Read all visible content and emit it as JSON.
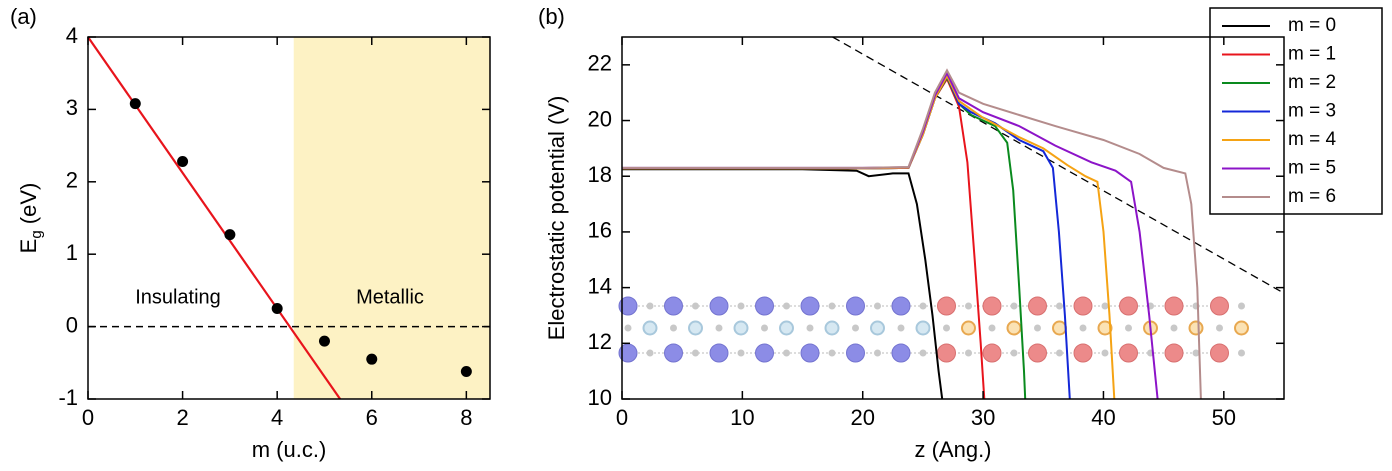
{
  "chart_data": [
    {
      "type": "scatter",
      "panel_label": "(a)",
      "xlabel": "m (u.c.)",
      "ylabel": [
        "E",
        "g",
        " (eV)"
      ],
      "xlim": [
        0,
        8.5
      ],
      "ylim": [
        -1,
        4
      ],
      "xticks": [
        0,
        2,
        4,
        6,
        8
      ],
      "yticks": [
        -1,
        0,
        1,
        2,
        3,
        4
      ],
      "x": [
        1,
        2,
        3,
        4,
        5,
        6,
        8
      ],
      "values": [
        3.08,
        2.28,
        1.27,
        0.25,
        -0.2,
        -0.45,
        -0.62
      ],
      "color": "#000000",
      "fit": {
        "x": [
          0,
          5.33
        ],
        "values": [
          4,
          -1
        ],
        "color": "#e8141c"
      },
      "hline": 0,
      "shade_xlim": [
        4.35,
        8.5
      ],
      "shade_color": "#fdf2c4",
      "annotations": [
        "Insulating",
        "Metallic"
      ]
    },
    {
      "type": "line",
      "panel_label": "(b)",
      "xlabel": "z (Ang.)",
      "ylabel": "Electrostatic potential (V)",
      "xlim": [
        0,
        55
      ],
      "ylim": [
        10,
        23
      ],
      "xticks": [
        0,
        10,
        20,
        30,
        40,
        50
      ],
      "yticks": [
        10,
        12,
        14,
        16,
        18,
        20,
        22
      ],
      "legend": "upper right",
      "guide": {
        "x": [
          17.5,
          55
        ],
        "values": [
          23,
          13.8
        ]
      },
      "series": [
        {
          "name": "m = 0",
          "color": "#000000",
          "x": [
            0,
            5,
            10,
            15,
            19.5,
            20.5,
            22.5,
            23.8,
            24.5,
            25.2,
            25.8,
            26.3,
            26.6
          ],
          "values": [
            18.25,
            18.25,
            18.25,
            18.25,
            18.2,
            18.0,
            18.1,
            18.1,
            17,
            15,
            13,
            11,
            10
          ]
        },
        {
          "name": "m = 1",
          "color": "#e8141c",
          "x": [
            0,
            10,
            20,
            23.8,
            25,
            26,
            27,
            28,
            28.7,
            29.3,
            29.8,
            30.1
          ],
          "values": [
            18.28,
            18.28,
            18.28,
            18.3,
            19.5,
            20.8,
            21.5,
            20.5,
            18.5,
            15,
            12,
            10
          ]
        },
        {
          "name": "m = 2",
          "color": "#0a8a1e",
          "x": [
            0,
            10,
            20,
            23.8,
            25,
            26,
            27,
            28,
            29,
            31,
            32,
            32.5,
            33,
            33.4,
            33.5
          ],
          "values": [
            18.28,
            18.28,
            18.28,
            18.3,
            19.5,
            20.8,
            21.55,
            20.6,
            20.2,
            19.8,
            19.2,
            17.5,
            14,
            11,
            10
          ]
        },
        {
          "name": "m = 3",
          "color": "#1428d8",
          "x": [
            0,
            10,
            20,
            23.8,
            25,
            26,
            27,
            28,
            29,
            31,
            33,
            35,
            35.8,
            36.3,
            36.8,
            37.2
          ],
          "values": [
            18.28,
            18.28,
            18.28,
            18.3,
            19.5,
            20.8,
            21.6,
            20.6,
            20.3,
            19.9,
            19.3,
            18.9,
            18.3,
            16,
            13,
            10
          ]
        },
        {
          "name": "m = 4",
          "color": "#f5a314",
          "x": [
            0,
            10,
            20,
            23.8,
            25,
            26,
            27,
            28,
            30,
            33,
            35,
            37,
            38.5,
            39.5,
            40,
            40.5,
            40.9
          ],
          "values": [
            18.28,
            18.28,
            18.28,
            18.3,
            19.5,
            20.8,
            21.6,
            20.7,
            20.1,
            19.4,
            19.0,
            18.4,
            18.0,
            17.8,
            16,
            13,
            10
          ]
        },
        {
          "name": "m = 5",
          "color": "#8c14c8",
          "x": [
            0,
            10,
            20,
            23.8,
            25,
            26,
            27,
            28,
            30,
            33,
            36,
            39,
            41,
            42.3,
            43,
            43.8,
            44.5
          ],
          "values": [
            18.3,
            18.3,
            18.3,
            18.32,
            19.6,
            20.9,
            21.7,
            20.8,
            20.3,
            19.8,
            19.1,
            18.5,
            18.2,
            17.8,
            16,
            13,
            10
          ]
        },
        {
          "name": "m = 6",
          "color": "#b48c8c",
          "x": [
            0,
            10,
            20,
            23.8,
            25,
            26,
            27,
            28,
            30,
            33,
            36,
            40,
            43,
            45,
            46.8,
            47.3,
            47.8,
            48.1
          ],
          "values": [
            18.3,
            18.3,
            18.3,
            18.33,
            19.7,
            21.0,
            21.8,
            21.0,
            20.6,
            20.2,
            19.8,
            19.3,
            18.8,
            18.3,
            18.1,
            17,
            14,
            10
          ]
        }
      ]
    }
  ]
}
